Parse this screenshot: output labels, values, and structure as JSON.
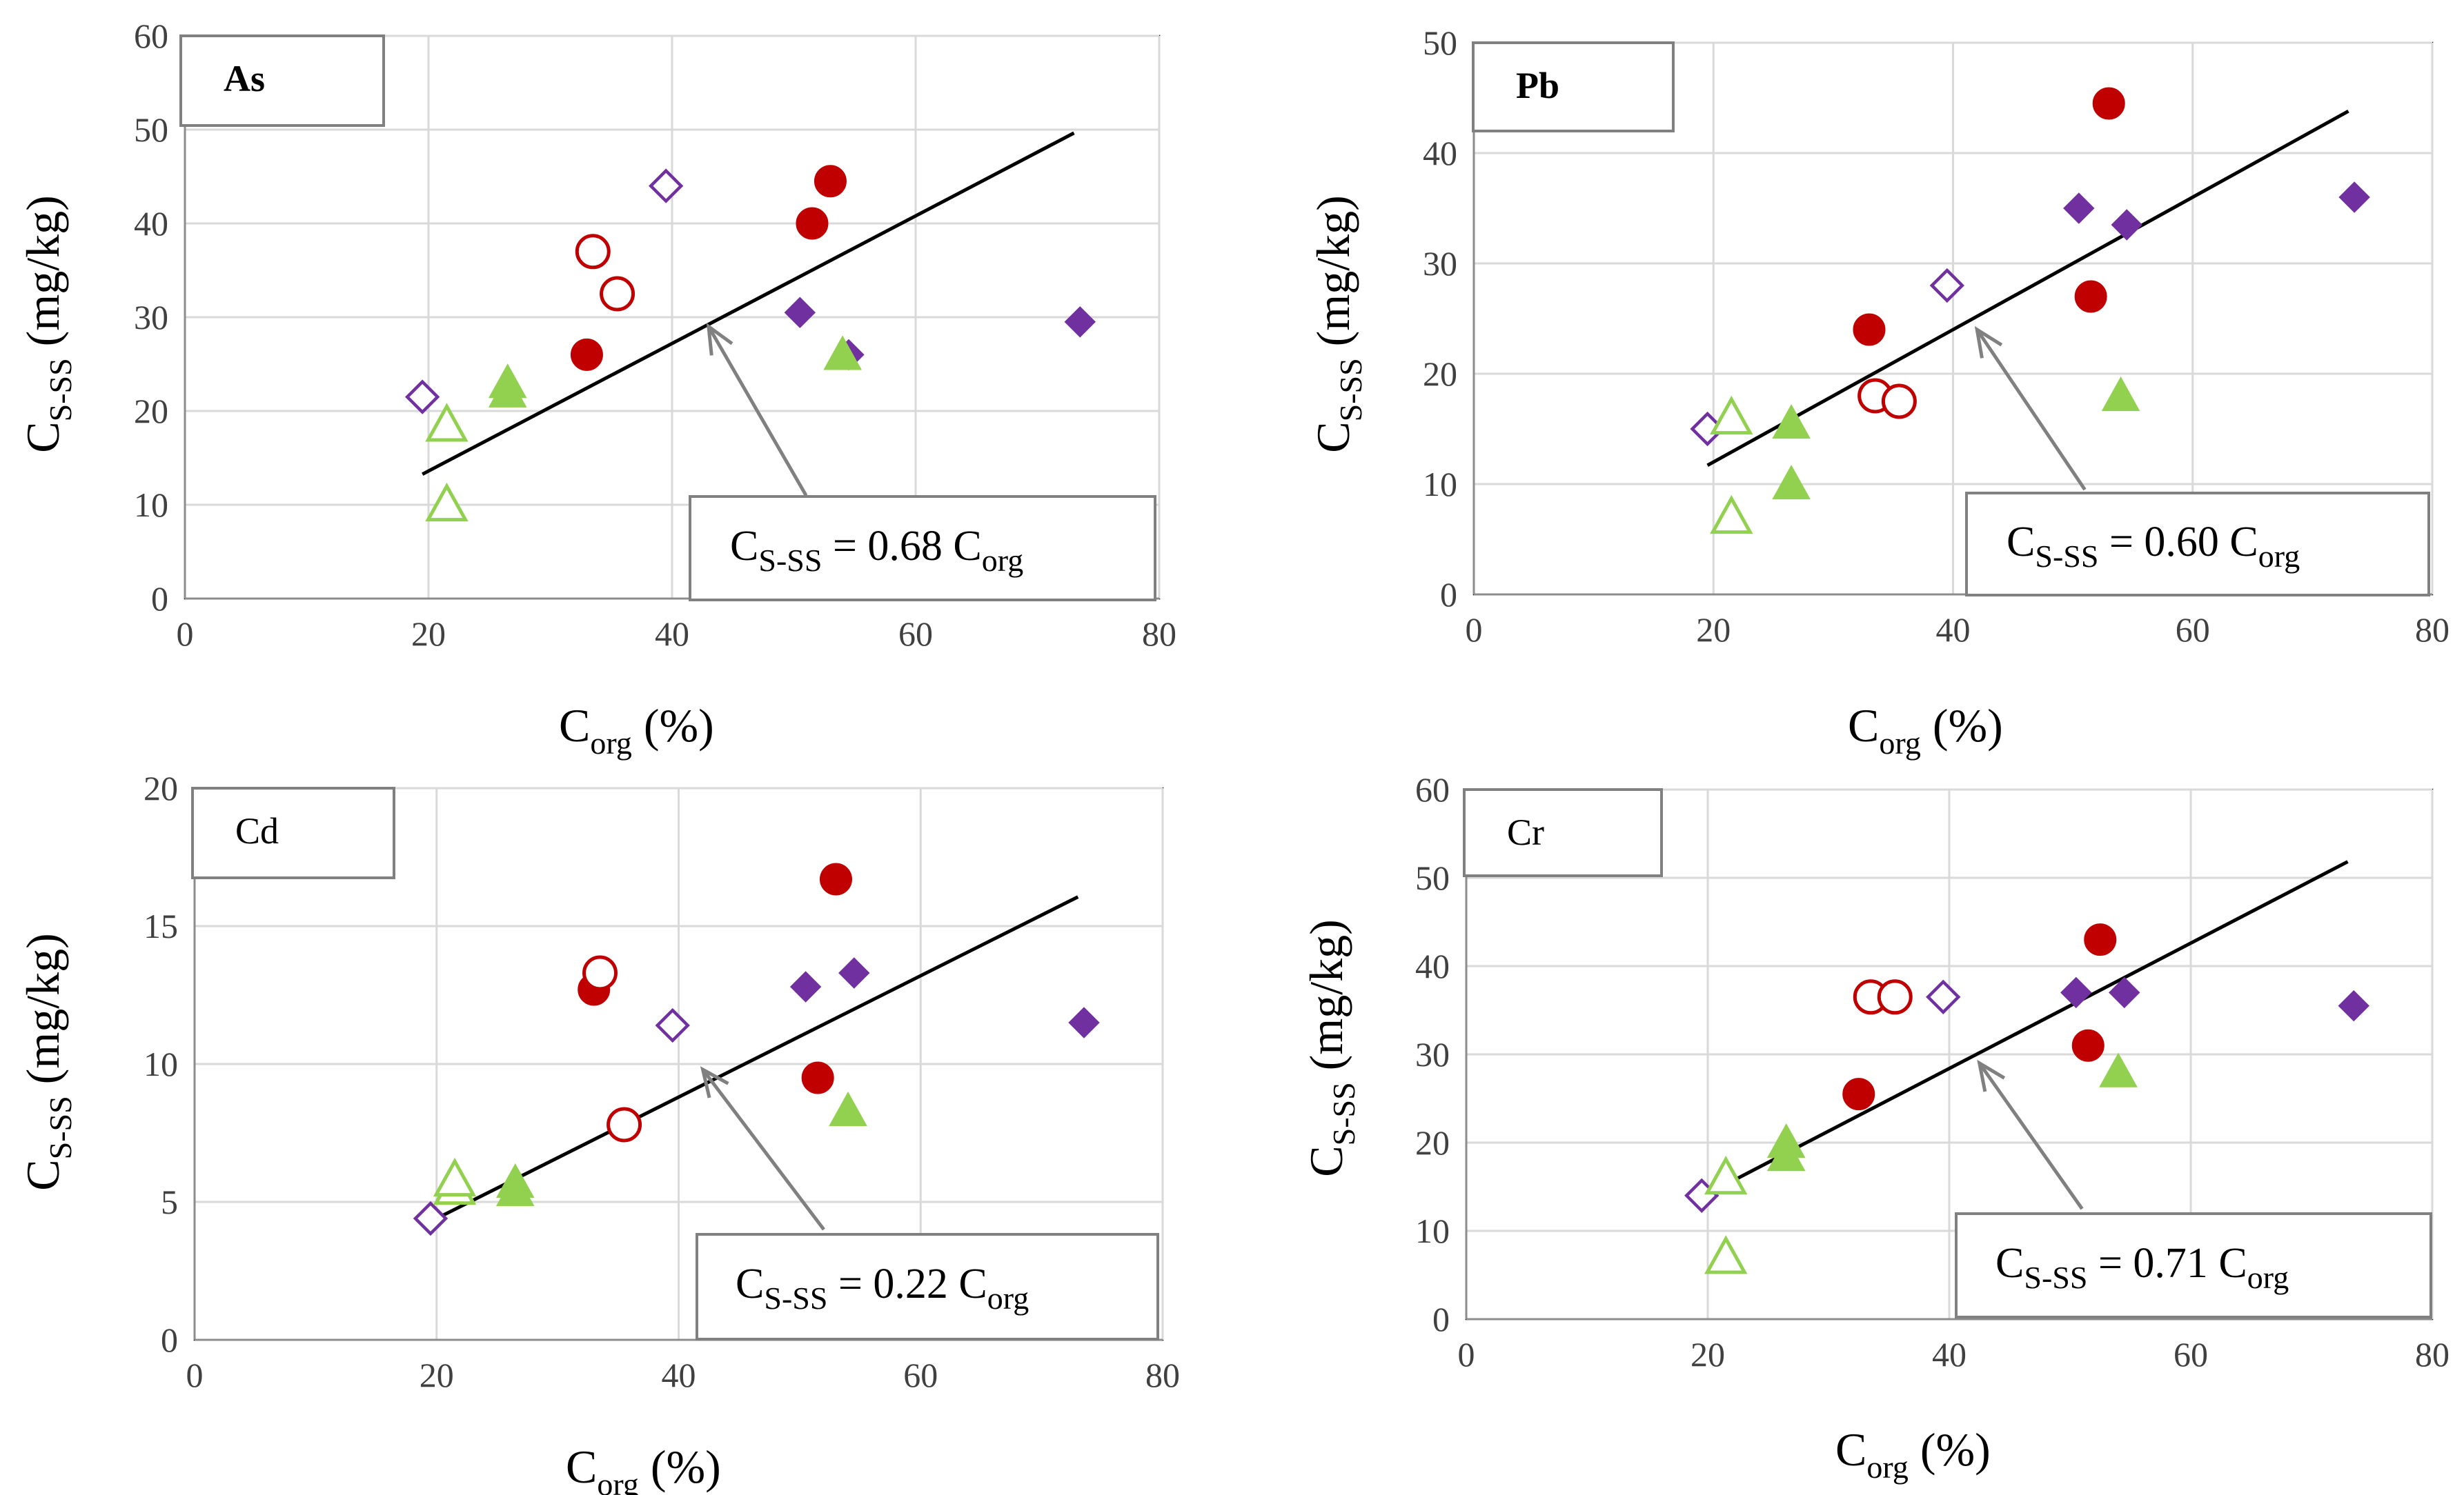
{
  "colors": {
    "red": "#c00000",
    "purple": "#7030a0",
    "green": "#92d050",
    "arrow": "#808080",
    "grid": "#d9d9d9"
  },
  "chart_data": [
    {
      "type": "scatter",
      "metal": "As",
      "x_label_main": "C",
      "x_label_sub": "org",
      "x_label_unit": "(%)",
      "y_label_main": "C",
      "y_label_sub": "S-SS",
      "y_label_unit": "(mg/kg)",
      "xlim": [
        0,
        80
      ],
      "ylim": [
        0,
        60
      ],
      "xticks": [
        0,
        20,
        40,
        60,
        80
      ],
      "yticks": [
        0,
        10,
        20,
        30,
        40,
        50,
        60
      ],
      "equation": {
        "main": "C",
        "sub": "S-SS",
        "mid": " = 0.68 C",
        "sub2": "org"
      },
      "fit": {
        "slope": 0.68,
        "x_range": [
          19.5,
          73
        ]
      },
      "arrow": {
        "from": [
          51,
          11
        ],
        "to": [
          43,
          29
        ]
      },
      "series": [
        {
          "name": "red-filled",
          "marker": "circle",
          "filled": true,
          "color": "#c00000",
          "points": [
            [
              33,
              26
            ],
            [
              51.5,
              40
            ],
            [
              53,
              44.5
            ]
          ]
        },
        {
          "name": "red-open",
          "marker": "circle",
          "filled": false,
          "color": "#c00000",
          "points": [
            [
              33.5,
              37
            ],
            [
              35.5,
              32.5
            ]
          ]
        },
        {
          "name": "purple-filled",
          "marker": "diamond",
          "filled": true,
          "color": "#7030a0",
          "points": [
            [
              50.5,
              30.5
            ],
            [
              54.5,
              26
            ],
            [
              73.5,
              29.5
            ]
          ]
        },
        {
          "name": "purple-open",
          "marker": "diamond",
          "filled": false,
          "color": "#7030a0",
          "points": [
            [
              19.5,
              21.5
            ],
            [
              39.5,
              44
            ]
          ]
        },
        {
          "name": "green-filled",
          "marker": "triangle",
          "filled": true,
          "color": "#92d050",
          "points": [
            [
              26.5,
              22
            ],
            [
              26.5,
              23
            ],
            [
              54,
              26
            ]
          ]
        },
        {
          "name": "green-open",
          "marker": "triangle",
          "filled": false,
          "color": "#92d050",
          "points": [
            [
              21.5,
              10
            ],
            [
              21.5,
              18.5
            ]
          ]
        }
      ]
    },
    {
      "type": "scatter",
      "metal": "Pb",
      "x_label_main": "C",
      "x_label_sub": "org",
      "x_label_unit": "(%)",
      "y_label_main": "C",
      "y_label_sub": "S-SS",
      "y_label_unit": "(mg/kg)",
      "xlim": [
        0,
        80
      ],
      "ylim": [
        0,
        50
      ],
      "xticks": [
        0,
        20,
        40,
        60,
        80
      ],
      "yticks": [
        0,
        10,
        20,
        30,
        40,
        50
      ],
      "equation": {
        "main": "C",
        "sub": "S-SS",
        "mid": " = 0.60 C",
        "sub2": "org"
      },
      "fit": {
        "slope": 0.6,
        "x_range": [
          19.5,
          73
        ]
      },
      "arrow": {
        "from": [
          51,
          9.5
        ],
        "to": [
          42,
          24
        ]
      },
      "series": [
        {
          "name": "red-filled",
          "marker": "circle",
          "filled": true,
          "color": "#c00000",
          "points": [
            [
              33,
              24
            ],
            [
              51.5,
              27
            ],
            [
              53,
              44.5
            ]
          ]
        },
        {
          "name": "red-open",
          "marker": "circle",
          "filled": false,
          "color": "#c00000",
          "points": [
            [
              33.5,
              18
            ],
            [
              35.5,
              17.5
            ]
          ]
        },
        {
          "name": "purple-filled",
          "marker": "diamond",
          "filled": true,
          "color": "#7030a0",
          "points": [
            [
              50.5,
              35
            ],
            [
              54.5,
              33.5
            ],
            [
              73.5,
              36
            ]
          ]
        },
        {
          "name": "purple-open",
          "marker": "diamond",
          "filled": false,
          "color": "#7030a0",
          "points": [
            [
              19.5,
              15
            ],
            [
              39.5,
              28
            ]
          ]
        },
        {
          "name": "green-filled",
          "marker": "triangle",
          "filled": true,
          "color": "#92d050",
          "points": [
            [
              26.5,
              10
            ],
            [
              26.5,
              15.5
            ],
            [
              54,
              18
            ]
          ]
        },
        {
          "name": "green-open",
          "marker": "triangle",
          "filled": false,
          "color": "#92d050",
          "points": [
            [
              21.5,
              7
            ],
            [
              21.5,
              16
            ]
          ]
        }
      ]
    },
    {
      "type": "scatter",
      "metal": "Cd",
      "x_label_main": "C",
      "x_label_sub": "org",
      "x_label_unit": "(%)",
      "y_label_main": "C",
      "y_label_sub": "S-SS",
      "y_label_unit": "(mg/kg)",
      "xlim": [
        0,
        80
      ],
      "ylim": [
        0,
        20
      ],
      "xticks": [
        0,
        20,
        40,
        60,
        80
      ],
      "yticks": [
        0,
        5,
        10,
        15,
        20
      ],
      "equation": {
        "main": "C",
        "sub": "S-SS",
        "mid": " = 0.22 C",
        "sub2": "org"
      },
      "fit": {
        "slope": 0.22,
        "x_range": [
          19.5,
          73
        ]
      },
      "arrow": {
        "from": [
          52,
          4
        ],
        "to": [
          42,
          9.8
        ]
      },
      "series": [
        {
          "name": "red-filled",
          "marker": "circle",
          "filled": true,
          "color": "#c00000",
          "points": [
            [
              33,
              12.7
            ],
            [
              51.5,
              9.5
            ],
            [
              53,
              16.7
            ]
          ]
        },
        {
          "name": "red-open",
          "marker": "circle",
          "filled": false,
          "color": "#c00000",
          "points": [
            [
              33.5,
              13.3
            ],
            [
              35.5,
              7.8
            ]
          ]
        },
        {
          "name": "purple-filled",
          "marker": "diamond",
          "filled": true,
          "color": "#7030a0",
          "points": [
            [
              50.5,
              12.8
            ],
            [
              54.5,
              13.3
            ],
            [
              73.5,
              11.5
            ]
          ]
        },
        {
          "name": "purple-open",
          "marker": "diamond",
          "filled": false,
          "color": "#7030a0",
          "points": [
            [
              19.5,
              4.4
            ],
            [
              39.5,
              11.4
            ]
          ]
        },
        {
          "name": "green-filled",
          "marker": "triangle",
          "filled": true,
          "color": "#92d050",
          "points": [
            [
              26.5,
              5.4
            ],
            [
              26.5,
              5.7
            ],
            [
              54,
              8.3
            ]
          ]
        },
        {
          "name": "green-open",
          "marker": "triangle",
          "filled": false,
          "color": "#92d050",
          "points": [
            [
              21.5,
              5.5
            ],
            [
              21.5,
              5.8
            ]
          ]
        }
      ]
    },
    {
      "type": "scatter",
      "metal": "Cr",
      "x_label_main": "C",
      "x_label_sub": "org",
      "x_label_unit": "(%)",
      "y_label_main": "C",
      "y_label_sub": "S-SS",
      "y_label_unit": "(mg/kg)",
      "xlim": [
        0,
        80
      ],
      "ylim": [
        0,
        60
      ],
      "xticks": [
        0,
        20,
        40,
        60,
        80
      ],
      "yticks": [
        0,
        10,
        20,
        30,
        40,
        50,
        60
      ],
      "equation": {
        "main": "C",
        "sub": "S-SS",
        "mid": " = 0.71 C",
        "sub2": "org"
      },
      "fit": {
        "slope": 0.71,
        "x_range": [
          19.5,
          73
        ]
      },
      "arrow": {
        "from": [
          51,
          12.5
        ],
        "to": [
          42.5,
          29
        ]
      },
      "series": [
        {
          "name": "red-filled",
          "marker": "circle",
          "filled": true,
          "color": "#c00000",
          "points": [
            [
              32.5,
              25.5
            ],
            [
              51.5,
              31
            ],
            [
              52.5,
              43
            ]
          ]
        },
        {
          "name": "red-open",
          "marker": "circle",
          "filled": false,
          "color": "#c00000",
          "points": [
            [
              33.5,
              36.5
            ],
            [
              35.5,
              36.5
            ]
          ]
        },
        {
          "name": "purple-filled",
          "marker": "diamond",
          "filled": true,
          "color": "#7030a0",
          "points": [
            [
              50.5,
              37
            ],
            [
              54.5,
              37
            ],
            [
              73.5,
              35.5
            ]
          ]
        },
        {
          "name": "purple-open",
          "marker": "diamond",
          "filled": false,
          "color": "#7030a0",
          "points": [
            [
              19.5,
              14
            ],
            [
              39.5,
              36.5
            ]
          ]
        },
        {
          "name": "green-filled",
          "marker": "triangle",
          "filled": true,
          "color": "#92d050",
          "points": [
            [
              26.5,
              18.5
            ],
            [
              26.5,
              20
            ],
            [
              54,
              28
            ]
          ]
        },
        {
          "name": "green-open",
          "marker": "triangle",
          "filled": false,
          "color": "#92d050",
          "points": [
            [
              21.5,
              7
            ],
            [
              21.5,
              16
            ]
          ]
        }
      ]
    }
  ]
}
